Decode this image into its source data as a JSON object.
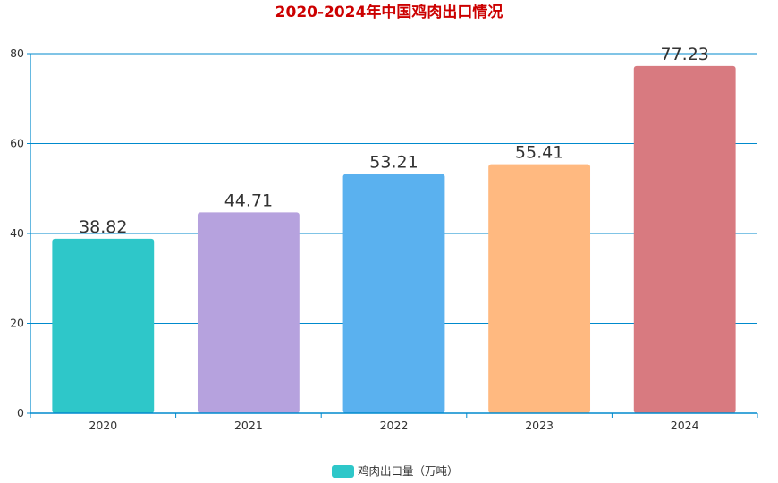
{
  "chart_data": {
    "type": "bar",
    "title": "2020-2024年中国鸡肉出口情况",
    "categories": [
      "2020",
      "2021",
      "2022",
      "2023",
      "2024"
    ],
    "series": [
      {
        "name": "鸡肉出口量（万吨）",
        "values": [
          38.82,
          44.71,
          53.21,
          55.41,
          77.23
        ]
      }
    ],
    "bar_colors": [
      "#2ec7c9",
      "#b6a2de",
      "#5ab1ef",
      "#ffb980",
      "#d87a80"
    ],
    "title_color": "#cc0000",
    "axis_color": "#008acd",
    "ylim": [
      0,
      80
    ],
    "yticks": [
      0,
      20,
      40,
      60,
      80
    ],
    "xlabel": "",
    "ylabel": "",
    "grid": true,
    "legend_position": "bottom-center",
    "data_labels": true
  }
}
